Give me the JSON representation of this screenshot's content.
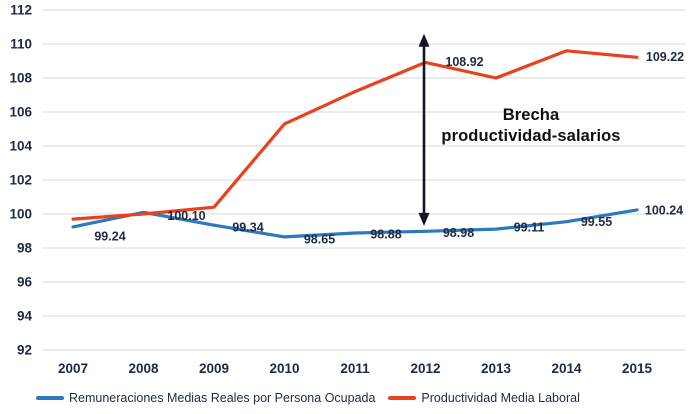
{
  "chart_data": {
    "type": "line",
    "x": [
      "2007",
      "2008",
      "2009",
      "2010",
      "2011",
      "2012",
      "2013",
      "2014",
      "2015"
    ],
    "ylim": [
      92,
      112
    ],
    "yticks": [
      92,
      94,
      96,
      98,
      100,
      102,
      104,
      106,
      108,
      110,
      112
    ],
    "grid": true,
    "legend_position": "bottom",
    "series": [
      {
        "name": "Remuneraciones Medias Reales por Persona Ocupada",
        "color": "#2E78BE",
        "values": [
          99.24,
          100.1,
          99.34,
          98.65,
          98.88,
          98.98,
          99.11,
          99.55,
          100.24
        ],
        "labels": [
          "99.24",
          "100.10",
          "99.34",
          "98.65",
          "98.88",
          "98.98",
          "99.11",
          "99.55",
          "100.24"
        ]
      },
      {
        "name": "Productividad Media Laboral",
        "color": "#E7411D",
        "values": [
          99.7,
          100.0,
          100.4,
          105.3,
          107.2,
          108.92,
          108.0,
          109.6,
          109.22
        ],
        "labels": [
          null,
          null,
          null,
          null,
          null,
          "108.92",
          null,
          null,
          "109.22"
        ]
      }
    ],
    "annotation": {
      "line1": "Brecha",
      "line2": "productividad-salarios"
    },
    "arrow": {
      "x_year": "2012",
      "from_value": 110.6,
      "to_value": 99.3
    },
    "colors": {
      "grid": "#D9D9D9",
      "tick_text": "#1E2A45",
      "data_label_text": "#1E2A45",
      "annotation_text": "#0D1017",
      "arrow": "#14161F",
      "background": "#FFFFFF"
    }
  }
}
